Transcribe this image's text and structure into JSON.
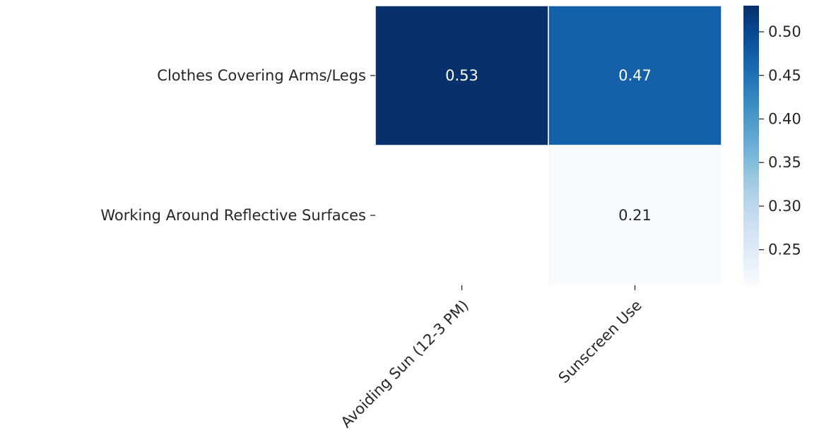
{
  "chart_data": {
    "type": "heatmap",
    "title": "",
    "xlabel": "",
    "ylabel": "",
    "rows": [
      "Clothes Covering Arms/Legs",
      "Working Around Reflective Surfaces"
    ],
    "columns": [
      "Avoiding Sun (12-3 PM)",
      "Sunscreen Use"
    ],
    "values": [
      [
        0.53,
        0.47
      ],
      [
        null,
        0.21
      ]
    ],
    "value_labels": [
      [
        "0.53",
        "0.47"
      ],
      [
        "",
        "0.21"
      ]
    ],
    "colormap": "Blues",
    "vmin": 0.21,
    "vmax": 0.53,
    "colorbar": {
      "ticks": [
        0.25,
        0.3,
        0.35,
        0.4,
        0.45,
        0.5
      ],
      "tick_labels": [
        "0.25",
        "0.30",
        "0.35",
        "0.40",
        "0.45",
        "0.50"
      ]
    },
    "grid": false,
    "legend": "colorbar-right"
  }
}
